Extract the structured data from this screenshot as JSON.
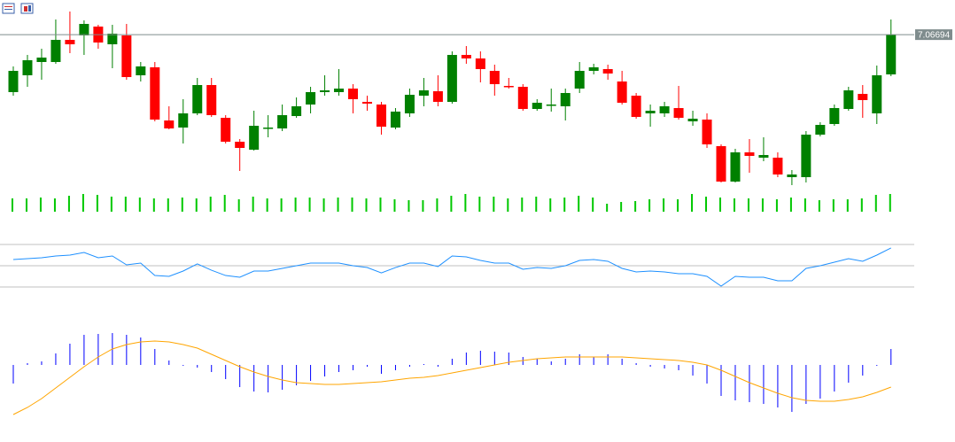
{
  "chart_data": [
    {
      "type": "candlestick",
      "ylim": [
        6.98,
        7.085
      ],
      "up_color": "#008000",
      "down_color": "#ff0000",
      "last_price": 7.06694,
      "last_price_color": "#7f8c8d",
      "open": [
        7.0345,
        7.044,
        7.0515,
        7.0515,
        7.064,
        7.0665,
        7.0715,
        7.0615,
        7.0665,
        7.044,
        7.0485,
        7.0185,
        7.0145,
        7.0225,
        7.0385,
        7.02,
        7.0065,
        7.002,
        7.014,
        7.014,
        7.021,
        7.0275,
        7.0345,
        7.0345,
        7.0365,
        7.029,
        7.0275,
        7.0145,
        7.0225,
        7.0325,
        7.035,
        7.029,
        7.0555,
        7.0535,
        7.0465,
        7.038,
        7.0375,
        7.025,
        7.0275,
        7.0265,
        7.0365,
        7.0465,
        7.0475,
        7.0405,
        7.0325,
        7.0225,
        7.0225,
        7.0255,
        7.018,
        7.019,
        7.004,
        6.984,
        7.0005,
        6.9975,
        6.9975,
        6.9865,
        6.9865,
        7.0105,
        7.0165,
        7.025,
        7.0335,
        7.0225,
        7.0445
      ],
      "high": [
        7.049,
        7.0555,
        7.059,
        7.0755,
        7.08,
        7.075,
        7.0725,
        7.0725,
        7.073,
        7.0515,
        7.0515,
        7.0265,
        7.0305,
        7.0425,
        7.0425,
        7.0215,
        7.008,
        7.024,
        7.0215,
        7.0275,
        7.0315,
        7.0375,
        7.044,
        7.0475,
        7.039,
        7.0325,
        7.029,
        7.0255,
        7.0365,
        7.0425,
        7.044,
        7.0575,
        7.0605,
        7.0575,
        7.05,
        7.0425,
        7.039,
        7.0305,
        7.0365,
        7.0365,
        7.0515,
        7.0505,
        7.05,
        7.0465,
        7.034,
        7.0275,
        7.029,
        7.038,
        7.024,
        7.0225,
        7.005,
        7.0025,
        7.008,
        7.009,
        7.0005,
        6.9905,
        7.0125,
        7.0175,
        7.0275,
        7.0375,
        7.0385,
        7.0495,
        7.0755
      ],
      "low": [
        7.0325,
        7.0375,
        7.0415,
        7.0505,
        7.0565,
        7.0555,
        7.059,
        7.048,
        7.0415,
        7.0405,
        7.018,
        7.0135,
        7.0055,
        7.0215,
        7.0205,
        7.0055,
        6.99,
        7.0015,
        7.009,
        7.0125,
        7.02,
        7.0225,
        7.0325,
        7.0325,
        7.0225,
        7.024,
        7.0105,
        7.0135,
        7.0205,
        7.0265,
        7.0265,
        7.028,
        7.0505,
        7.04,
        7.0325,
        7.0365,
        7.024,
        7.024,
        7.0235,
        7.0185,
        7.034,
        7.0445,
        7.0415,
        7.0275,
        7.0195,
        7.015,
        7.0205,
        7.019,
        7.0155,
        7.003,
        6.9835,
        6.9835,
        6.989,
        6.9955,
        6.9865,
        6.982,
        6.9835,
        7.0095,
        7.0155,
        7.024,
        7.02,
        7.0165,
        7.0435
      ],
      "close": [
        7.0465,
        7.0525,
        7.054,
        7.064,
        7.0615,
        7.073,
        7.0625,
        7.0675,
        7.043,
        7.049,
        7.019,
        7.014,
        7.0225,
        7.0385,
        7.0215,
        7.0065,
        7.003,
        7.0155,
        7.0145,
        7.0215,
        7.0265,
        7.0345,
        7.0355,
        7.0365,
        7.0305,
        7.028,
        7.015,
        7.0235,
        7.033,
        7.0355,
        7.029,
        7.0555,
        7.0535,
        7.0475,
        7.039,
        7.0375,
        7.025,
        7.0285,
        7.0275,
        7.034,
        7.0465,
        7.0485,
        7.045,
        7.0285,
        7.0205,
        7.024,
        7.0265,
        7.02,
        7.0195,
        7.005,
        6.984,
        7.0005,
        6.9985,
        6.999,
        6.988,
        6.988,
        7.0105,
        7.016,
        7.0255,
        7.0355,
        7.03,
        7.044,
        7.06694
      ]
    },
    {
      "type": "bar",
      "color": "#00c800",
      "ylim": [
        0,
        25
      ],
      "values": [
        15,
        15,
        16,
        15,
        18,
        20,
        19,
        17,
        17,
        16,
        15,
        15,
        16,
        15,
        17,
        19,
        14,
        17,
        15,
        15,
        16,
        16,
        15,
        16,
        16,
        15,
        16,
        14,
        13,
        13,
        15,
        18,
        20,
        17,
        17,
        15,
        16,
        17,
        15,
        16,
        18,
        16,
        9,
        11,
        12,
        14,
        15,
        14,
        20,
        17,
        16,
        15,
        15,
        15,
        14,
        16,
        15,
        13,
        14,
        14,
        15,
        19,
        20
      ]
    },
    {
      "type": "line",
      "color": "#1e90ff",
      "ylim": [
        25,
        75
      ],
      "levels": [
        30,
        50,
        70
      ],
      "level_color": "#c0c0c0",
      "values": [
        55.8,
        56.7,
        57.5,
        59.2,
        60,
        62.5,
        57.5,
        59.2,
        50.8,
        52.5,
        40.8,
        40,
        45,
        51.7,
        45.8,
        40.8,
        39.2,
        45,
        45,
        47.5,
        50,
        52.5,
        52.5,
        52.5,
        50,
        48.3,
        43.3,
        48.3,
        52.5,
        52.5,
        49.2,
        59.2,
        58.3,
        55,
        52.5,
        52.5,
        46.7,
        48.3,
        47.5,
        50,
        55,
        55.8,
        54.2,
        47.5,
        44.2,
        45,
        44.2,
        42.5,
        42.5,
        40,
        30.8,
        40,
        39.2,
        39.2,
        35.8,
        35.8,
        47.5,
        50,
        53.3,
        56.7,
        54.2,
        60,
        66.7
      ]
    },
    {
      "type": "macd",
      "ylim": [
        -65,
        40
      ],
      "series": [
        {
          "color": "#0000ff",
          "values": [
            -21,
            2,
            4,
            13,
            24,
            34,
            35,
            36,
            34,
            31,
            18,
            5,
            -1,
            -3,
            -8,
            -16,
            -25,
            -30,
            -31,
            -28,
            -23,
            -18,
            -13,
            -8,
            -6,
            -2,
            -10,
            -6,
            -2,
            1,
            -2,
            7,
            14,
            16,
            15,
            14,
            9,
            7,
            4,
            7,
            12,
            9,
            12,
            7,
            2,
            -2,
            -4,
            -6,
            -12,
            -21,
            -35,
            -40,
            -42,
            -44,
            -48,
            -53,
            -44,
            -38,
            -30,
            -20,
            -12,
            -1,
            18
          ]
        },
        {
          "color": "#ffa500",
          "values": [
            -56,
            -48,
            -38,
            -26,
            -14,
            -2,
            9,
            18,
            23,
            26,
            27,
            26,
            23,
            19,
            12,
            5,
            -2,
            -8,
            -13,
            -17,
            -20,
            -21,
            -22,
            -22,
            -21,
            -20,
            -19,
            -17,
            -15,
            -14,
            -12,
            -9,
            -6,
            -3,
            0,
            3,
            5,
            7,
            8,
            9,
            9,
            9,
            9,
            9,
            8,
            7,
            6,
            5,
            3,
            0,
            -6,
            -13,
            -20,
            -26,
            -32,
            -37,
            -40,
            -41,
            -41,
            -39,
            -36,
            -31,
            -25
          ]
        }
      ]
    }
  ]
}
